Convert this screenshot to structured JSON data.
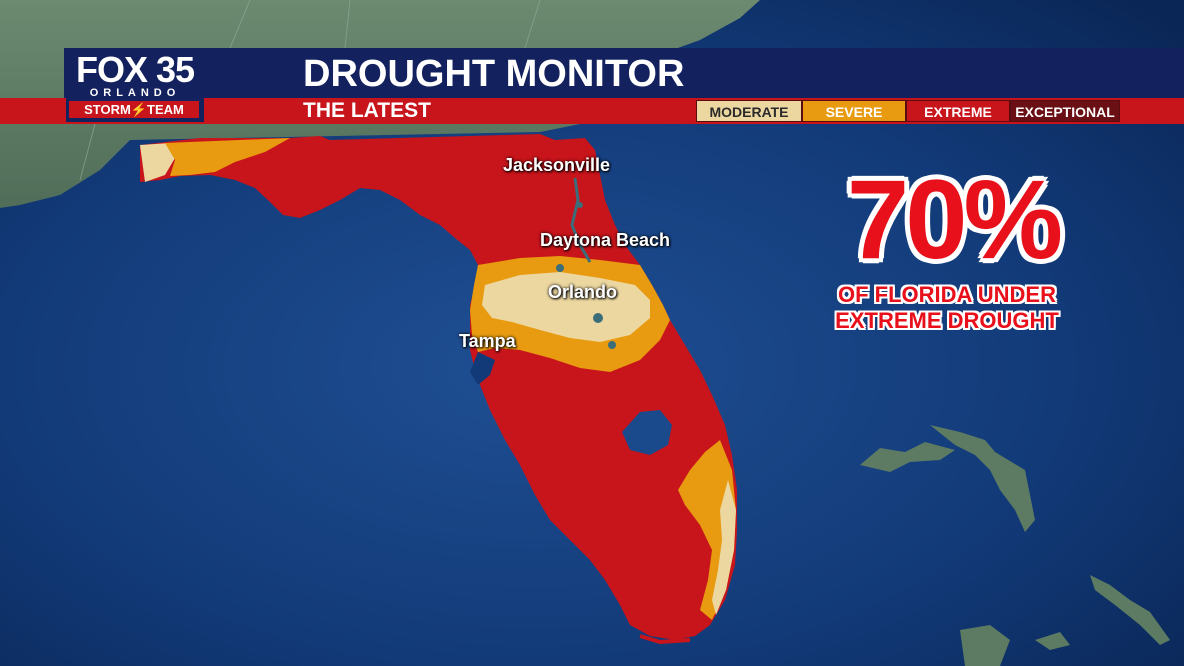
{
  "header": {
    "logo": {
      "station": "FOX 35",
      "city": "ORLANDO",
      "team": "STORM⚡TEAM"
    },
    "title": "DROUGHT MONITOR",
    "subtitle": "THE LATEST"
  },
  "legend": [
    {
      "label": "MODERATE",
      "color": "#ecd7a0",
      "text_color": "#2a2a2a"
    },
    {
      "label": "SEVERE",
      "color": "#e89b10",
      "text_color": "#ffffff"
    },
    {
      "label": "EXTREME",
      "color": "#c8141b",
      "text_color": "#ffffff"
    },
    {
      "label": "EXCEPTIONAL",
      "color": "#6a1014",
      "text_color": "#ffffff"
    }
  ],
  "cities": [
    {
      "name": "Jacksonville"
    },
    {
      "name": "Daytona Beach"
    },
    {
      "name": "Orlando"
    },
    {
      "name": "Tampa"
    }
  ],
  "callout": {
    "percent": "70%",
    "line1": "OF  FLORIDA UNDER",
    "line2": "EXTREME  DROUGHT"
  },
  "colors": {
    "ocean": "#0b2a5e",
    "land": "#5d7a63",
    "banner_blue": "#13215e",
    "banner_red": "#c8141b",
    "moderate": "#ecd7a0",
    "severe": "#e89b10",
    "extreme": "#c8141b"
  }
}
